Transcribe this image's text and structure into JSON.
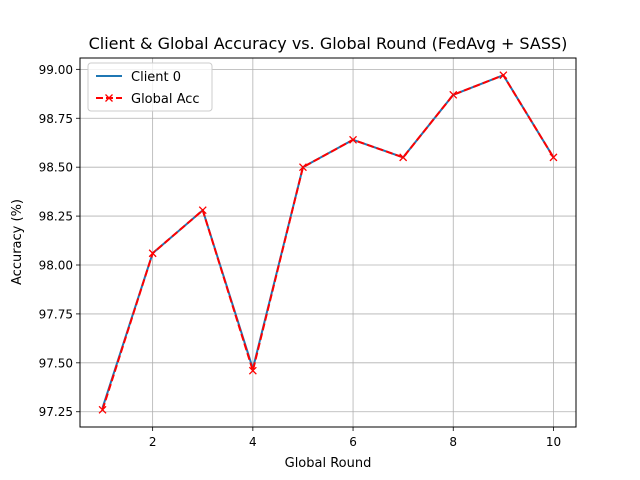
{
  "chart_data": {
    "type": "line",
    "title": "Client & Global Accuracy vs. Global Round (FedAvg + SASS)",
    "xlabel": "Global Round",
    "ylabel": "Accuracy (%)",
    "x": [
      1,
      2,
      3,
      4,
      5,
      6,
      7,
      8,
      9,
      10
    ],
    "xlim": [
      0.55,
      10.45
    ],
    "ylim": [
      97.172,
      99.058
    ],
    "xticks": [
      2,
      4,
      6,
      8,
      10
    ],
    "yticks": [
      97.25,
      97.5,
      97.75,
      98.0,
      98.25,
      98.5,
      98.75,
      99.0
    ],
    "grid": true,
    "legend_position": "top-left",
    "series": [
      {
        "name": "Client 0",
        "color": "#1f77b4",
        "style": "solid",
        "marker": "none",
        "values": [
          97.27,
          98.06,
          98.28,
          97.47,
          98.5,
          98.64,
          98.55,
          98.87,
          98.97,
          98.55
        ]
      },
      {
        "name": "Global Acc",
        "color": "#ff0000",
        "style": "dashed",
        "marker": "x",
        "values": [
          97.26,
          98.06,
          98.28,
          97.46,
          98.5,
          98.64,
          98.55,
          98.87,
          98.97,
          98.55
        ]
      }
    ]
  }
}
